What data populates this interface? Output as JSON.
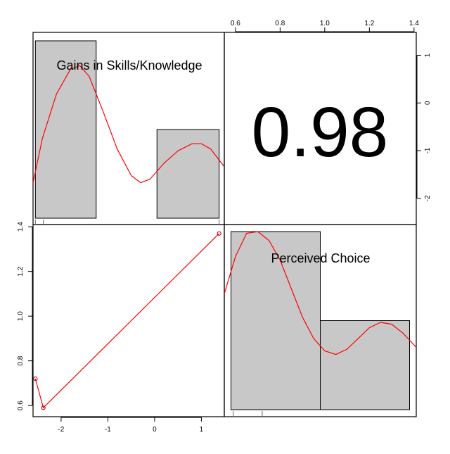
{
  "chart_data": {
    "type": "pairs",
    "variables": [
      "Gains in Skills/Knowledge",
      "Perceived Choice"
    ],
    "correlation_label": "0.98",
    "top_axis": {
      "ticks": [
        "0.6",
        "0.8",
        "1.0",
        "1.2",
        "1.4"
      ],
      "range": [
        0.55,
        1.41
      ]
    },
    "right_axis": {
      "ticks": [
        "1",
        "0",
        "-1",
        "-2"
      ],
      "range": [
        -2.55,
        1.48
      ]
    },
    "left_axis": {
      "ticks": [
        "1.4",
        "1.2",
        "1.0",
        "0.8",
        "0.6"
      ],
      "range": [
        0.55,
        1.41
      ]
    },
    "bottom_axis": {
      "ticks": [
        "-2",
        "-1",
        "0",
        "1"
      ],
      "range": [
        -2.6,
        1.49
      ]
    },
    "histogram_x": {
      "bins": [
        [
          -2.55,
          -1.25,
          1.0
        ],
        [
          0.05,
          1.38,
          0.5
        ]
      ],
      "density": [
        [
          -2.6,
          0.2
        ],
        [
          -2.4,
          0.45
        ],
        [
          -2.1,
          0.7
        ],
        [
          -1.8,
          0.84
        ],
        [
          -1.6,
          0.86
        ],
        [
          -1.4,
          0.8
        ],
        [
          -1.1,
          0.6
        ],
        [
          -0.8,
          0.39
        ],
        [
          -0.5,
          0.24
        ],
        [
          -0.3,
          0.2
        ],
        [
          -0.1,
          0.22
        ],
        [
          0.2,
          0.31
        ],
        [
          0.5,
          0.38
        ],
        [
          0.8,
          0.42
        ],
        [
          1.0,
          0.42
        ],
        [
          1.2,
          0.39
        ],
        [
          1.49,
          0.29
        ]
      ],
      "rug": [
        -2.55,
        -2.38,
        1.38
      ]
    },
    "histogram_y": {
      "bins": [
        [
          0.58,
          0.98,
          1.0
        ],
        [
          0.98,
          1.38,
          0.5
        ]
      ],
      "density": [
        [
          0.55,
          0.65
        ],
        [
          0.6,
          0.86
        ],
        [
          0.65,
          0.99
        ],
        [
          0.7,
          1.0
        ],
        [
          0.75,
          0.95
        ],
        [
          0.8,
          0.84
        ],
        [
          0.85,
          0.68
        ],
        [
          0.9,
          0.52
        ],
        [
          0.95,
          0.4
        ],
        [
          1.0,
          0.33
        ],
        [
          1.05,
          0.31
        ],
        [
          1.1,
          0.34
        ],
        [
          1.15,
          0.4
        ],
        [
          1.2,
          0.46
        ],
        [
          1.25,
          0.49
        ],
        [
          1.3,
          0.48
        ],
        [
          1.35,
          0.43
        ],
        [
          1.41,
          0.35
        ]
      ],
      "rug": [
        0.59,
        0.72
      ]
    },
    "scatter": {
      "x": [
        -2.55,
        -2.38,
        1.38
      ],
      "y": [
        0.72,
        0.59,
        1.37
      ],
      "smooth": [
        [
          -2.55,
          0.72
        ],
        [
          -2.38,
          0.59
        ],
        [
          1.38,
          1.37
        ]
      ]
    },
    "colors": {
      "bar_fill": "#c8c8c8",
      "line": "#ff0000",
      "point": "#a00000",
      "axis": "#000000"
    }
  }
}
